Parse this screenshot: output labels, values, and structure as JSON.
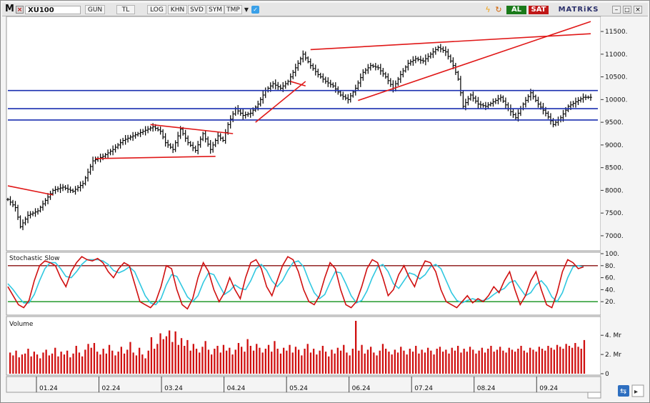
{
  "toolbar": {
    "logo_letter": "M",
    "symbol": "XU100",
    "buttons": [
      "GUN",
      "TL",
      "LOG",
      "KHN",
      "SVD",
      "SYM",
      "TMP"
    ],
    "al_label": "AL",
    "sat_label": "SAT",
    "brand": "MATRiKS",
    "colors": {
      "al": "#1a7a1a",
      "sat": "#c01818"
    }
  },
  "chart_data": [
    {
      "type": "line",
      "chart_style": "ohlc-bars",
      "title": "XU100",
      "ylim": [
        6700,
        11800
      ],
      "yticks": [
        "11500.",
        "11000.",
        "10500.",
        "10000.",
        "9500.",
        "9000.",
        "8500.",
        "8000.",
        "7500.",
        "7000."
      ],
      "ytick_values": [
        11500,
        11000,
        10500,
        10000,
        9500,
        9000,
        8500,
        8000,
        7500,
        7000
      ],
      "x": [
        "01.24",
        "02.24",
        "03.24",
        "04.24",
        "05.24",
        "06.24",
        "07.24",
        "08.24",
        "09.24"
      ],
      "series": [
        {
          "name": "",
          "color": "#000000",
          "points": [
            [
              0,
              7800
            ],
            [
              3,
              7620
            ],
            [
              5,
              7200
            ],
            [
              8,
              7450
            ],
            [
              12,
              7550
            ],
            [
              15,
              7780
            ],
            [
              18,
              8000
            ],
            [
              22,
              8070
            ],
            [
              26,
              7980
            ],
            [
              30,
              8150
            ],
            [
              34,
              8650
            ],
            [
              38,
              8750
            ],
            [
              42,
              8900
            ],
            [
              46,
              9100
            ],
            [
              50,
              9200
            ],
            [
              54,
              9300
            ],
            [
              58,
              9400
            ],
            [
              61,
              9300
            ],
            [
              63,
              9050
            ],
            [
              66,
              8900
            ],
            [
              69,
              9350
            ],
            [
              72,
              9050
            ],
            [
              75,
              8880
            ],
            [
              78,
              9250
            ],
            [
              81,
              8900
            ],
            [
              84,
              9200
            ],
            [
              86,
              9100
            ],
            [
              88,
              9450
            ],
            [
              91,
              9800
            ],
            [
              94,
              9650
            ],
            [
              97,
              9700
            ],
            [
              100,
              9900
            ],
            [
              103,
              10200
            ],
            [
              106,
              10350
            ],
            [
              109,
              10250
            ],
            [
              112,
              10400
            ],
            [
              115,
              10700
            ],
            [
              118,
              11000
            ],
            [
              121,
              10750
            ],
            [
              124,
              10550
            ],
            [
              127,
              10400
            ],
            [
              130,
              10300
            ],
            [
              133,
              10100
            ],
            [
              136,
              10000
            ],
            [
              139,
              10250
            ],
            [
              142,
              10600
            ],
            [
              145,
              10750
            ],
            [
              148,
              10700
            ],
            [
              151,
              10500
            ],
            [
              154,
              10250
            ],
            [
              157,
              10550
            ],
            [
              160,
              10800
            ],
            [
              163,
              10900
            ],
            [
              166,
              10850
            ],
            [
              169,
              11000
            ],
            [
              172,
              11150
            ],
            [
              175,
              11050
            ],
            [
              178,
              10750
            ],
            [
              180,
              10450
            ],
            [
              182,
              9850
            ],
            [
              185,
              10100
            ],
            [
              188,
              9900
            ],
            [
              191,
              9850
            ],
            [
              194,
              9950
            ],
            [
              197,
              10050
            ],
            [
              200,
              9800
            ],
            [
              203,
              9600
            ],
            [
              206,
              9900
            ],
            [
              209,
              10150
            ],
            [
              212,
              9900
            ],
            [
              215,
              9700
            ],
            [
              218,
              9450
            ],
            [
              221,
              9600
            ],
            [
              224,
              9850
            ],
            [
              227,
              9950
            ],
            [
              230,
              10050
            ],
            [
              233,
              10050
            ]
          ]
        }
      ],
      "support_resistance_lines": [
        10200,
        9800,
        9550
      ],
      "trend_lines": [
        {
          "from": [
            0,
            8100
          ],
          "to": [
            18,
            7900
          ]
        },
        {
          "from": [
            35,
            8700
          ],
          "to": [
            83,
            8750
          ]
        },
        {
          "from": [
            57,
            9450
          ],
          "to": [
            90,
            9250
          ]
        },
        {
          "from": [
            99,
            9500
          ],
          "to": [
            119,
            10400
          ]
        },
        {
          "from": [
            113,
            10400
          ],
          "to": [
            119,
            10300
          ]
        },
        {
          "from": [
            121,
            11100
          ],
          "to": [
            233,
            11450
          ]
        },
        {
          "from": [
            140,
            9980
          ],
          "to": [
            233,
            11720
          ]
        }
      ]
    },
    {
      "type": "line",
      "title": "Stochastic Slow",
      "ylim": [
        0,
        100
      ],
      "yticks": [
        "100.",
        "80.",
        "60.",
        "40.",
        "20."
      ],
      "ytick_values": [
        100,
        80,
        60,
        40,
        20
      ],
      "levels": [
        80,
        20
      ],
      "series": [
        {
          "name": "",
          "color": "#d01010",
          "values": [
            45,
            30,
            15,
            10,
            22,
            55,
            80,
            88,
            85,
            80,
            60,
            45,
            70,
            85,
            95,
            90,
            88,
            92,
            85,
            70,
            60,
            75,
            85,
            80,
            50,
            20,
            15,
            10,
            20,
            45,
            80,
            75,
            40,
            15,
            8,
            25,
            60,
            85,
            70,
            40,
            20,
            35,
            60,
            40,
            25,
            60,
            85,
            90,
            75,
            45,
            30,
            55,
            80,
            95,
            90,
            70,
            40,
            20,
            15,
            30,
            60,
            85,
            75,
            40,
            15,
            10,
            20,
            45,
            75,
            90,
            85,
            60,
            30,
            40,
            65,
            80,
            60,
            45,
            70,
            88,
            85,
            70,
            40,
            20,
            15,
            10,
            20,
            30,
            18,
            25,
            20,
            30,
            45,
            35,
            55,
            70,
            40,
            15,
            30,
            55,
            70,
            40,
            15,
            10,
            35,
            70,
            90,
            85,
            75,
            78
          ]
        },
        {
          "name": "",
          "color": "#30c8e0",
          "values": [
            50,
            40,
            28,
            18,
            18,
            32,
            55,
            75,
            85,
            85,
            75,
            62,
            60,
            70,
            82,
            90,
            90,
            90,
            88,
            82,
            72,
            68,
            72,
            78,
            70,
            50,
            30,
            18,
            15,
            25,
            48,
            65,
            62,
            45,
            28,
            20,
            30,
            52,
            68,
            65,
            48,
            32,
            38,
            48,
            42,
            40,
            55,
            75,
            82,
            72,
            55,
            45,
            55,
            72,
            85,
            88,
            78,
            55,
            35,
            25,
            32,
            52,
            70,
            68,
            50,
            30,
            18,
            22,
            38,
            60,
            78,
            82,
            70,
            50,
            42,
            55,
            68,
            65,
            58,
            65,
            78,
            82,
            75,
            55,
            35,
            22,
            18,
            22,
            25,
            22,
            22,
            25,
            32,
            38,
            42,
            52,
            55,
            42,
            30,
            35,
            48,
            55,
            45,
            28,
            20,
            35,
            60,
            78,
            80,
            78
          ]
        }
      ]
    },
    {
      "type": "bar",
      "title": "Volume",
      "ylim": [
        0,
        5.8
      ],
      "yticks": [
        "4. Mr",
        "2. Mr",
        "0"
      ],
      "ytick_values": [
        4,
        2,
        0
      ],
      "color": "#d01010",
      "values": [
        2.2,
        1.9,
        2.4,
        1.7,
        2.0,
        2.1,
        2.6,
        1.8,
        2.3,
        2.0,
        1.6,
        2.2,
        2.5,
        1.9,
        2.1,
        2.7,
        1.8,
        2.3,
        2.0,
        2.4,
        1.7,
        2.1,
        2.9,
        2.2,
        1.8,
        2.5,
        3.1,
        2.7,
        3.2,
        2.3,
        2.0,
        2.6,
        2.1,
        3.0,
        2.4,
        1.9,
        2.3,
        2.8,
        2.1,
        2.5,
        3.3,
        2.2,
        1.9,
        2.7,
        2.0,
        1.6,
        2.4,
        3.8,
        2.6,
        3.1,
        4.2,
        3.6,
        3.9,
        4.5,
        3.3,
        4.4,
        3.0,
        3.7,
        2.9,
        3.5,
        2.4,
        3.1,
        2.6,
        2.2,
        2.8,
        3.4,
        2.5,
        2.0,
        2.6,
        2.9,
        2.2,
        3.0,
        2.4,
        2.7,
        2.0,
        2.5,
        3.2,
        2.8,
        2.3,
        3.6,
        2.9,
        2.4,
        3.1,
        2.7,
        2.2,
        2.6,
        3.0,
        2.3,
        3.4,
        2.6,
        2.1,
        2.7,
        2.4,
        3.0,
        2.2,
        2.8,
        2.5,
        1.9,
        2.6,
        3.1,
        2.2,
        2.6,
        2.0,
        2.4,
        2.9,
        2.3,
        1.8,
        2.5,
        2.1,
        2.7,
        2.4,
        3.0,
        2.2,
        1.9,
        2.6,
        5.5,
        2.4,
        3.0,
        2.1,
        2.5,
        2.8,
        2.2,
        1.9,
        2.4,
        3.1,
        2.6,
        2.3,
        2.0,
        2.5,
        2.2,
        2.8,
        2.4,
        2.0,
        2.6,
        2.3,
        2.9,
        2.1,
        2.5,
        2.2,
        2.7,
        2.4,
        2.0,
        2.6,
        2.8,
        2.3,
        2.5,
        2.1,
        2.7,
        2.4,
        2.9,
        2.2,
        2.6,
        2.3,
        2.8,
        2.5,
        2.1,
        2.4,
        2.7,
        2.2,
        2.6,
        2.9,
        2.3,
        2.5,
        2.8,
        2.4,
        2.2,
        2.7,
        2.5,
        2.3,
        2.6,
        2.9,
        2.4,
        2.2,
        2.7,
        2.5,
        2.3,
        2.8,
        2.6,
        2.4,
        2.9,
        2.7,
        2.5,
        3.0,
        2.8,
        2.6,
        3.1,
        2.9,
        2.7,
        3.2,
        2.8,
        2.6,
        3.5
      ]
    }
  ]
}
